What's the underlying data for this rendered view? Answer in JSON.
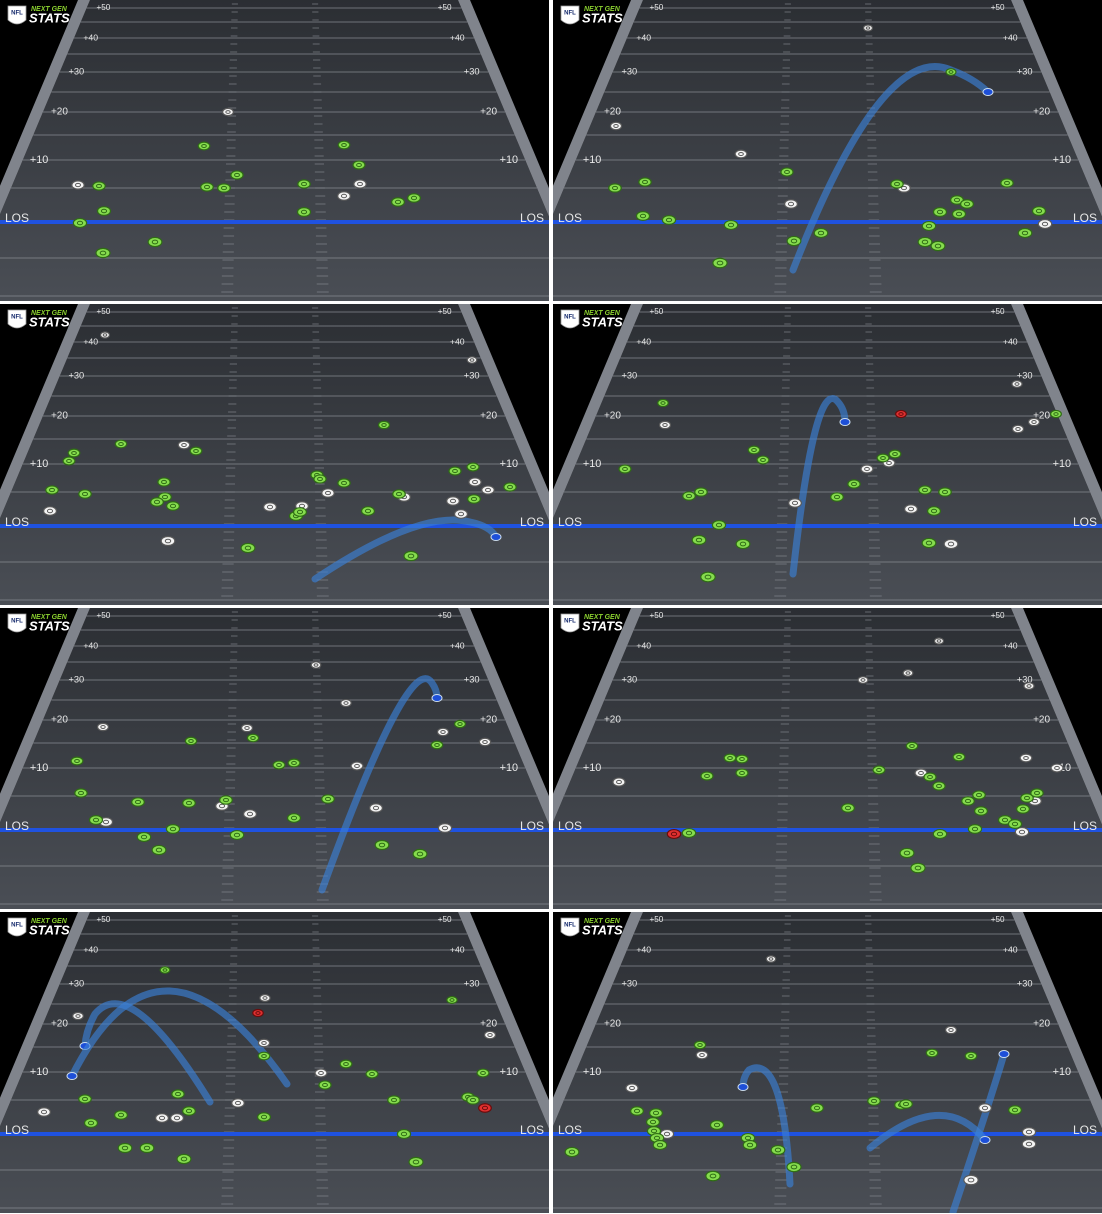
{
  "panels": [
    {
      "logo": {
        "league": "NFL",
        "brand_top": "NEXT GEN",
        "brand_bottom": "STATS"
      },
      "yard_labels": [
        "+50",
        "+40",
        "+30",
        "+20",
        "+10"
      ],
      "los_label": "LOS"
    },
    {
      "logo": {
        "league": "NFL",
        "brand_top": "NEXT GEN",
        "brand_bottom": "STATS"
      },
      "yard_labels": [
        "+50",
        "+40",
        "+30",
        "+20",
        "+10"
      ],
      "los_label": "LOS"
    },
    {
      "logo": {
        "league": "NFL",
        "brand_top": "NEXT GEN",
        "brand_bottom": "STATS"
      },
      "yard_labels": [
        "+50",
        "+40",
        "+30",
        "+20",
        "+10"
      ],
      "los_label": "LOS"
    },
    {
      "logo": {
        "league": "NFL",
        "brand_top": "NEXT GEN",
        "brand_bottom": "STATS"
      },
      "yard_labels": [
        "+50",
        "+40",
        "+30",
        "+20",
        "+10"
      ],
      "los_label": "LOS"
    },
    {
      "logo": {
        "league": "NFL",
        "brand_top": "NEXT GEN",
        "brand_bottom": "STATS"
      },
      "yard_labels": [
        "+50",
        "+40",
        "+30",
        "+20",
        "+10"
      ],
      "los_label": "LOS"
    },
    {
      "logo": {
        "league": "NFL",
        "brand_top": "NEXT GEN",
        "brand_bottom": "STATS"
      },
      "yard_labels": [
        "+50",
        "+40",
        "+30",
        "+20",
        "+10"
      ],
      "los_label": "LOS"
    },
    {
      "logo": {
        "league": "NFL",
        "brand_top": "NEXT GEN",
        "brand_bottom": "STATS"
      },
      "yard_labels": [
        "+50",
        "+40",
        "+30",
        "+20",
        "+10"
      ],
      "los_label": "LOS"
    },
    {
      "logo": {
        "league": "NFL",
        "brand_top": "NEXT GEN",
        "brand_bottom": "STATS"
      },
      "yard_labels": [
        "+50",
        "+40",
        "+30",
        "+20",
        "+10"
      ],
      "los_label": "LOS"
    }
  ]
}
